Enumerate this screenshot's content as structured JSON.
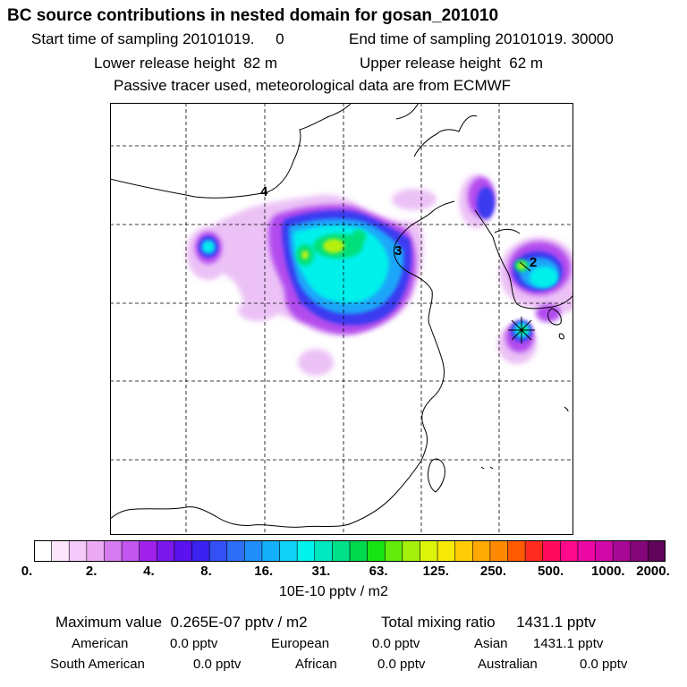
{
  "header": {
    "title": "BC  source contributions in nested domain for gosan_201010",
    "start_label": "Start time of sampling",
    "start_value": "20101019.     0",
    "end_label": "End time of sampling",
    "end_value": "20101019. 30000",
    "lower_label": "Lower release height",
    "lower_value": "82 m",
    "upper_label": "Upper release height",
    "upper_value": "62 m",
    "info": "Passive tracer used, meteorological data are from ECMWF"
  },
  "map": {
    "labels": [
      {
        "id": "4",
        "text": "4"
      },
      {
        "id": "3",
        "text": "3"
      },
      {
        "id": "2",
        "text": "2"
      }
    ]
  },
  "colorbar": {
    "ticks": [
      "0.",
      "2.",
      "4.",
      "8.",
      "16.",
      "31.",
      "63.",
      "125.",
      "250.",
      "500.",
      "1000.",
      "2000."
    ],
    "colors": [
      "#ffffff",
      "#fbe6fb",
      "#f4c8f8",
      "#ecaaf4",
      "#d67cf0",
      "#c256ee",
      "#a022ea",
      "#7a18ec",
      "#5a12ee",
      "#3a22f0",
      "#3450f4",
      "#2c6ef6",
      "#1f8ef8",
      "#16b0fa",
      "#10d2f6",
      "#00f4ee",
      "#00e8c0",
      "#00e08a",
      "#00d84e",
      "#18e414",
      "#64ec0c",
      "#a4f00a",
      "#dcf408",
      "#f6ea06",
      "#ffcc06",
      "#ffaa04",
      "#ff8a02",
      "#ff5a02",
      "#ff2a20",
      "#ff0a5c",
      "#ff0a8a",
      "#ee08a6",
      "#d008a8",
      "#a80896",
      "#840678",
      "#60045a"
    ],
    "units": "10E-10 pptv / m2"
  },
  "summary": {
    "max_label": "Maximum value",
    "max_value": "0.265E-07 pptv / m2",
    "total_label": "Total mixing ratio",
    "total_value": "1431.1 pptv"
  },
  "regions": [
    {
      "name": "American",
      "value": "0.0 pptv"
    },
    {
      "name": "European",
      "value": "0.0 pptv"
    },
    {
      "name": "Asian",
      "value": "1431.1 pptv"
    },
    {
      "name": "South American",
      "value": "0.0 pptv"
    },
    {
      "name": "African",
      "value": "0.0 pptv"
    },
    {
      "name": "Australian",
      "value": "0.0 pptv"
    }
  ]
}
